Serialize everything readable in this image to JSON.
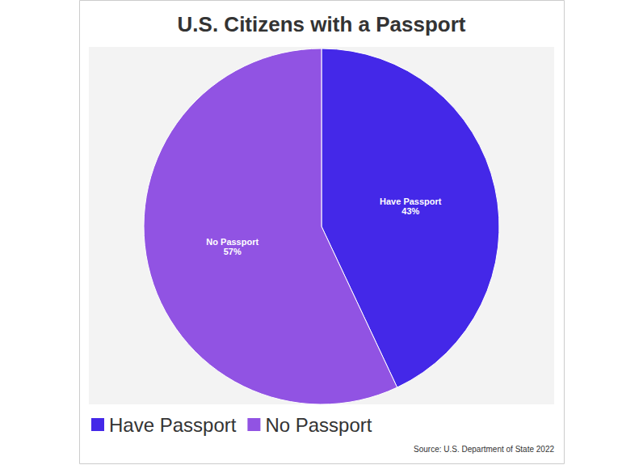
{
  "chart_data": {
    "type": "pie",
    "title": "U.S. Citizens with a Passport",
    "categories": [
      "Have Passport",
      "No Passport"
    ],
    "values": [
      43,
      57
    ],
    "value_labels": [
      "43%",
      "57%"
    ],
    "colors": [
      "#4428e8",
      "#9153e3"
    ],
    "data_labels": true,
    "legend": "bottom-left",
    "source": "Source: U.S. Department of State 2022"
  }
}
